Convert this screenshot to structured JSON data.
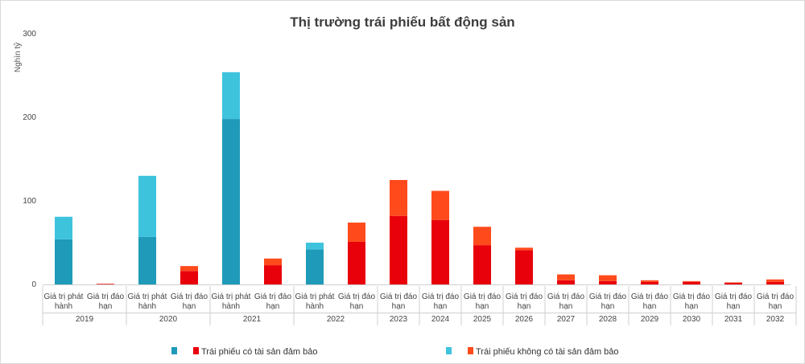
{
  "chart_data": {
    "type": "bar",
    "title": "Thị trường trái phiếu bất động sản",
    "ylabel": "Nghìn tỷ",
    "ylim": [
      0,
      300
    ],
    "yticks": [
      0,
      100,
      200,
      300
    ],
    "stacked": true,
    "groups": [
      {
        "year": "2019",
        "bars": [
          {
            "label": [
              "Giá trị phát",
              "hành"
            ],
            "kind": "issue",
            "secured": 54,
            "unsecured": 27
          },
          {
            "label": [
              "Giá trị đáo",
              "hạn"
            ],
            "kind": "maturity",
            "secured": 0.5,
            "unsecured": 0.3
          }
        ]
      },
      {
        "year": "2020",
        "bars": [
          {
            "label": [
              "Giá trị phát",
              "hành"
            ],
            "kind": "issue",
            "secured": 57,
            "unsecured": 73
          },
          {
            "label": [
              "Giá trị đáo",
              "hạn"
            ],
            "kind": "maturity",
            "secured": 16,
            "unsecured": 6
          }
        ]
      },
      {
        "year": "2021",
        "bars": [
          {
            "label": [
              "Giá trị phát",
              "hành"
            ],
            "kind": "issue",
            "secured": 198,
            "unsecured": 56
          },
          {
            "label": [
              "Giá trị đáo",
              "hạn"
            ],
            "kind": "maturity",
            "secured": 23,
            "unsecured": 8
          }
        ]
      },
      {
        "year": "2022",
        "bars": [
          {
            "label": [
              "Giá trị phát",
              "hành"
            ],
            "kind": "issue",
            "secured": 42,
            "unsecured": 8
          },
          {
            "label": [
              "Giá trị đáo",
              "hạn"
            ],
            "kind": "maturity",
            "secured": 51,
            "unsecured": 23
          }
        ]
      },
      {
        "year": "2023",
        "bars": [
          {
            "label": [
              "Giá trị đáo",
              "hạn"
            ],
            "kind": "maturity",
            "secured": 82,
            "unsecured": 43
          }
        ]
      },
      {
        "year": "2024",
        "bars": [
          {
            "label": [
              "Giá trị đáo",
              "hạn"
            ],
            "kind": "maturity",
            "secured": 77,
            "unsecured": 35
          }
        ]
      },
      {
        "year": "2025",
        "bars": [
          {
            "label": [
              "Giá trị đáo",
              "hạn"
            ],
            "kind": "maturity",
            "secured": 47,
            "unsecured": 22
          }
        ]
      },
      {
        "year": "2026",
        "bars": [
          {
            "label": [
              "Giá trị đáo",
              "hạn"
            ],
            "kind": "maturity",
            "secured": 41,
            "unsecured": 3
          }
        ]
      },
      {
        "year": "2027",
        "bars": [
          {
            "label": [
              "Giá trị đáo",
              "hạn"
            ],
            "kind": "maturity",
            "secured": 5,
            "unsecured": 7
          }
        ]
      },
      {
        "year": "2028",
        "bars": [
          {
            "label": [
              "Giá trị đáo",
              "hạn"
            ],
            "kind": "maturity",
            "secured": 4,
            "unsecured": 7
          }
        ]
      },
      {
        "year": "2029",
        "bars": [
          {
            "label": [
              "Giá trị đáo",
              "hạn"
            ],
            "kind": "maturity",
            "secured": 3,
            "unsecured": 2
          }
        ]
      },
      {
        "year": "2030",
        "bars": [
          {
            "label": [
              "Giá trị đáo",
              "hạn"
            ],
            "kind": "maturity",
            "secured": 3,
            "unsecured": 1
          }
        ]
      },
      {
        "year": "2031",
        "bars": [
          {
            "label": [
              "Giá trị đáo",
              "hạn"
            ],
            "kind": "maturity",
            "secured": 2,
            "unsecured": 0.5
          }
        ]
      },
      {
        "year": "2032",
        "bars": [
          {
            "label": [
              "Giá trị đáo",
              "hạn"
            ],
            "kind": "maturity",
            "secured": 3,
            "unsecured": 3
          }
        ]
      }
    ],
    "series": [
      {
        "name": "Trái phiếu có tài sản đảm bảo",
        "key": "secured",
        "issue_color": "#1f9ab8",
        "maturity_color": "#e8000b"
      },
      {
        "name": "Trái phiếu không có tài sản đảm bảo",
        "key": "unsecured",
        "issue_color": "#3ec3dd",
        "maturity_color": "#ff4a1c"
      }
    ],
    "legend_position": "bottom",
    "grid": false
  }
}
